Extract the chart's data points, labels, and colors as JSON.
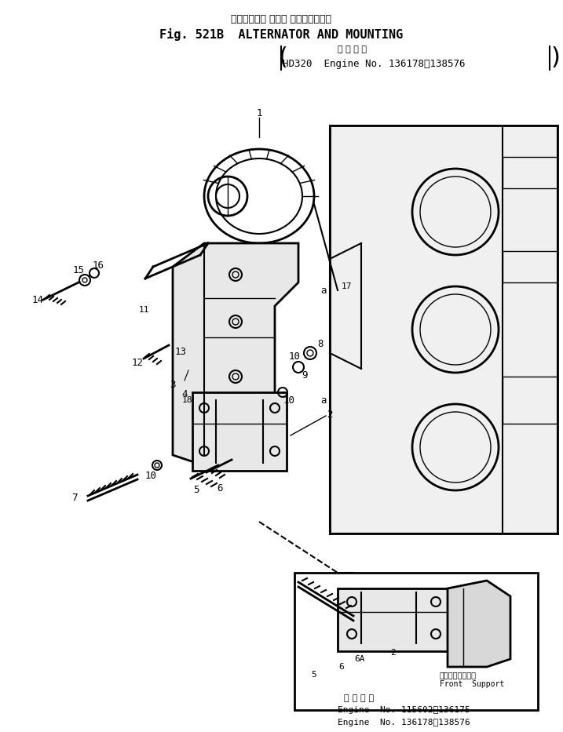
{
  "title_japanese": "オルタネータ および マウンティング",
  "title_english": "Fig. 521B  ALTERNATOR AND MOUNTING",
  "applicability_japanese": "適 用 号 機",
  "applicability_line": "HD320  Engine No. 136178～138576",
  "bottom_applicability_japanese": "適 用 号 機",
  "bottom_line1": "Engine  No. 115602～136175",
  "bottom_line2": "Engine  No. 136178～138576",
  "inset_label_japanese": "フロントサポート",
  "inset_label_english": "Front  Support",
  "bg_color": "#ffffff",
  "line_color": "#000000",
  "fig_width": 7.17,
  "fig_height": 9.33,
  "dpi": 100
}
